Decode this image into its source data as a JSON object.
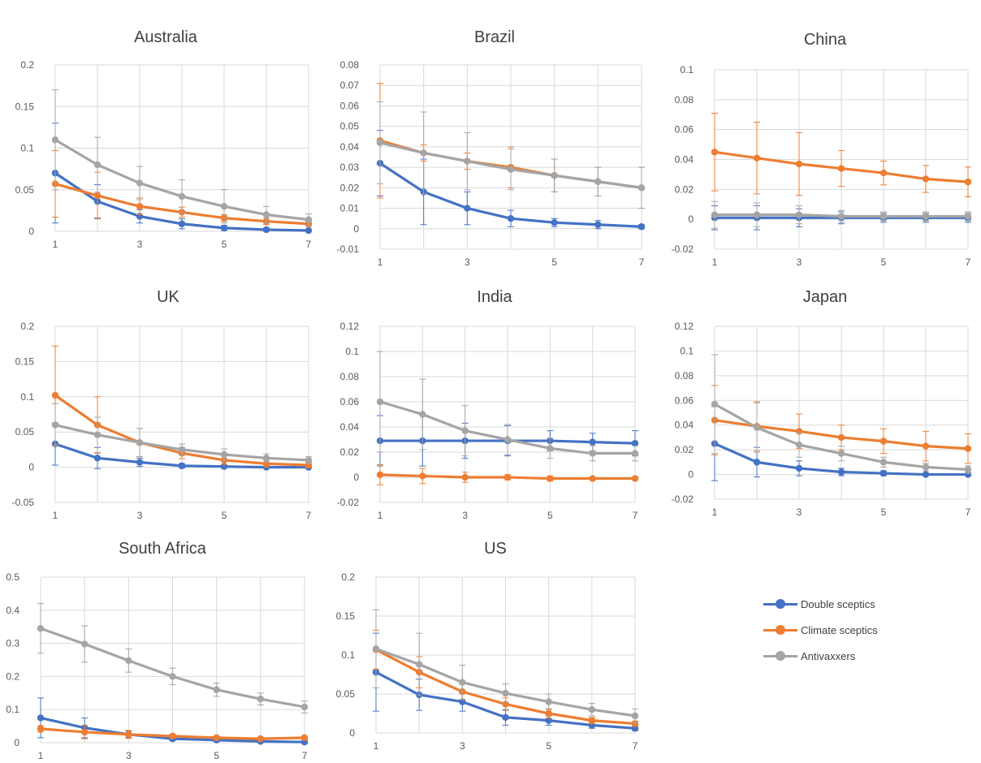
{
  "colors": {
    "double": "#4472C4",
    "climate": "#ED7D31",
    "anti": "#A5A5A5",
    "grid": "#D9D9D9",
    "axis_text": "#595959",
    "title": "#404040"
  },
  "legend": [
    {
      "label": "Double sceptics",
      "color": "#4472C4"
    },
    {
      "label": "Climate sceptics",
      "color": "#ED7D31"
    },
    {
      "label": "Antivaxxers",
      "color": "#A5A5A5"
    }
  ],
  "chart_data": [
    {
      "type": "line",
      "title": "Australia",
      "x": [
        1,
        2,
        3,
        4,
        5,
        6,
        7
      ],
      "x_ticks": [
        "1",
        "3",
        "5",
        "7"
      ],
      "xlim": [
        1,
        7
      ],
      "ylim": [
        0,
        0.2
      ],
      "y_ticks": [
        "0.2",
        "0.15",
        "0.1",
        "0.05",
        "0"
      ],
      "grid": true,
      "series": [
        {
          "name": "Double sceptics",
          "values": [
            0.07,
            0.036,
            0.018,
            0.009,
            0.004,
            0.002,
            0.001
          ],
          "err": [
            0.06,
            0.02,
            0.008,
            0.006,
            0.003,
            0.002,
            0.001
          ]
        },
        {
          "name": "Climate sceptics",
          "values": [
            0.057,
            0.043,
            0.03,
            0.023,
            0.016,
            0.012,
            0.009
          ],
          "err": [
            0.04,
            0.028,
            0.01,
            0.006,
            0.004,
            0.004,
            0.003
          ]
        },
        {
          "name": "Antivaxxers",
          "values": [
            0.11,
            0.08,
            0.058,
            0.042,
            0.03,
            0.02,
            0.014
          ],
          "err": [
            0.06,
            0.033,
            0.02,
            0.02,
            0.02,
            0.01,
            0.007
          ]
        }
      ]
    },
    {
      "type": "line",
      "title": "Brazil",
      "x": [
        1,
        2,
        3,
        4,
        5,
        6,
        7
      ],
      "x_ticks": [
        "1",
        "3",
        "5",
        "7"
      ],
      "xlim": [
        1,
        7
      ],
      "ylim": [
        -0.01,
        0.08
      ],
      "y_ticks": [
        "0.08",
        "0.07",
        "0.06",
        "0.05",
        "0.04",
        "0.03",
        "0.02",
        "0.01",
        "0",
        "-0.01"
      ],
      "grid": true,
      "series": [
        {
          "name": "Double sceptics",
          "values": [
            0.032,
            0.018,
            0.01,
            0.005,
            0.003,
            0.002,
            0.001
          ],
          "err": [
            0.016,
            0.016,
            0.008,
            0.004,
            0.002,
            0.002,
            0.001
          ]
        },
        {
          "name": "Climate sceptics",
          "values": [
            0.043,
            0.037,
            0.033,
            0.03,
            0.026,
            0.023,
            0.02
          ],
          "err": [
            0.028,
            0.004,
            0.004,
            0.01,
            0.008,
            0.007,
            0.01
          ]
        },
        {
          "name": "Antivaxxers",
          "values": [
            0.042,
            0.037,
            0.033,
            0.029,
            0.026,
            0.023,
            0.02
          ],
          "err": [
            0.02,
            0.02,
            0.014,
            0.01,
            0.008,
            0.007,
            0.01
          ]
        }
      ]
    },
    {
      "type": "line",
      "title": "China",
      "x": [
        1,
        2,
        3,
        4,
        5,
        6,
        7
      ],
      "x_ticks": [
        "1",
        "3",
        "5",
        "7"
      ],
      "xlim": [
        1,
        7
      ],
      "ylim": [
        -0.02,
        0.1
      ],
      "y_ticks": [
        "0.1",
        "0.08",
        "0.06",
        "0.04",
        "0.02",
        "0",
        "-0.02"
      ],
      "grid": true,
      "series": [
        {
          "name": "Double sceptics",
          "values": [
            0.001,
            0.001,
            0.001,
            0.001,
            0.001,
            0.001,
            0.001
          ],
          "err": [
            0.008,
            0.008,
            0.006,
            0.004,
            0.003,
            0.003,
            0.003
          ]
        },
        {
          "name": "Climate sceptics",
          "values": [
            0.045,
            0.041,
            0.037,
            0.034,
            0.031,
            0.027,
            0.025
          ],
          "err": [
            0.026,
            0.024,
            0.021,
            0.012,
            0.008,
            0.009,
            0.01
          ]
        },
        {
          "name": "Antivaxxers",
          "values": [
            0.003,
            0.003,
            0.003,
            0.002,
            0.002,
            0.002,
            0.002
          ],
          "err": [
            0.009,
            0.008,
            0.006,
            0.004,
            0.003,
            0.003,
            0.003
          ]
        }
      ]
    },
    {
      "type": "line",
      "title": "UK",
      "x": [
        1,
        2,
        3,
        4,
        5,
        6,
        7
      ],
      "x_ticks": [
        "1",
        "3",
        "5",
        "7"
      ],
      "xlim": [
        1,
        7
      ],
      "ylim": [
        -0.05,
        0.2
      ],
      "y_ticks": [
        "0.2",
        "0.15",
        "0.1",
        "0.05",
        "0",
        "-0.05"
      ],
      "grid": true,
      "series": [
        {
          "name": "Double sceptics",
          "values": [
            0.033,
            0.013,
            0.007,
            0.002,
            0.001,
            0.0,
            0.0
          ],
          "err": [
            0.03,
            0.015,
            0.006,
            0.003,
            0.002,
            0.001,
            0.001
          ]
        },
        {
          "name": "Climate sceptics",
          "values": [
            0.102,
            0.06,
            0.035,
            0.02,
            0.01,
            0.005,
            0.003
          ],
          "err": [
            0.07,
            0.04,
            0.02,
            0.008,
            0.006,
            0.005,
            0.004
          ]
        },
        {
          "name": "Antivaxxers",
          "values": [
            0.06,
            0.046,
            0.035,
            0.025,
            0.018,
            0.013,
            0.01
          ],
          "err": [
            0.03,
            0.025,
            0.02,
            0.008,
            0.008,
            0.006,
            0.005
          ]
        }
      ]
    },
    {
      "type": "line",
      "title": "India",
      "x": [
        1,
        2,
        3,
        4,
        5,
        6,
        7
      ],
      "x_ticks": [
        "1",
        "3",
        "5",
        "7"
      ],
      "xlim": [
        1,
        7
      ],
      "ylim": [
        -0.02,
        0.12
      ],
      "y_ticks": [
        "0.12",
        "0.1",
        "0.08",
        "0.06",
        "0.04",
        "0.02",
        "0",
        "-0.02"
      ],
      "grid": true,
      "series": [
        {
          "name": "Double sceptics",
          "values": [
            0.029,
            0.029,
            0.029,
            0.029,
            0.029,
            0.028,
            0.027
          ],
          "err": [
            0.02,
            0.02,
            0.014,
            0.012,
            0.008,
            0.007,
            0.01
          ]
        },
        {
          "name": "Climate sceptics",
          "values": [
            0.002,
            0.001,
            0.0,
            0.0,
            -0.001,
            -0.001,
            -0.001
          ],
          "err": [
            0.008,
            0.006,
            0.004,
            0.002,
            0.002,
            0.001,
            0.001
          ]
        },
        {
          "name": "Antivaxxers",
          "values": [
            0.06,
            0.05,
            0.037,
            0.03,
            0.023,
            0.019,
            0.019
          ],
          "err": [
            0.04,
            0.028,
            0.02,
            0.012,
            0.008,
            0.006,
            0.006
          ]
        }
      ]
    },
    {
      "type": "line",
      "title": "Japan",
      "x": [
        1,
        2,
        3,
        4,
        5,
        6,
        7
      ],
      "x_ticks": [
        "1",
        "3",
        "5",
        "7"
      ],
      "xlim": [
        1,
        7
      ],
      "ylim": [
        -0.02,
        0.12
      ],
      "y_ticks": [
        "0.12",
        "0.1",
        "0.08",
        "0.06",
        "0.04",
        "0.02",
        "0",
        "-0.02"
      ],
      "grid": true,
      "series": [
        {
          "name": "Double sceptics",
          "values": [
            0.025,
            0.01,
            0.005,
            0.002,
            0.001,
            0.0,
            0.0
          ],
          "err": [
            0.03,
            0.012,
            0.006,
            0.003,
            0.002,
            0.001,
            0.001
          ]
        },
        {
          "name": "Climate sceptics",
          "values": [
            0.044,
            0.039,
            0.035,
            0.03,
            0.027,
            0.023,
            0.021
          ],
          "err": [
            0.028,
            0.02,
            0.014,
            0.01,
            0.01,
            0.012,
            0.012
          ]
        },
        {
          "name": "Antivaxxers",
          "values": [
            0.057,
            0.038,
            0.024,
            0.017,
            0.01,
            0.006,
            0.004
          ],
          "err": [
            0.04,
            0.02,
            0.01,
            0.006,
            0.004,
            0.003,
            0.003
          ]
        }
      ]
    },
    {
      "type": "line",
      "title": "South Africa",
      "x": [
        1,
        2,
        3,
        4,
        5,
        6,
        7
      ],
      "x_ticks": [
        "1",
        "3",
        "5",
        "7"
      ],
      "xlim": [
        1,
        7
      ],
      "ylim": [
        0,
        0.5
      ],
      "y_ticks": [
        "0.5",
        "0.4",
        "0.3",
        "0.2",
        "0.1",
        "0"
      ],
      "grid": true,
      "series": [
        {
          "name": "Double sceptics",
          "values": [
            0.075,
            0.045,
            0.025,
            0.012,
            0.008,
            0.004,
            0.002
          ],
          "err": [
            0.06,
            0.03,
            0.01,
            0.006,
            0.004,
            0.003,
            0.003
          ]
        },
        {
          "name": "Climate sceptics",
          "values": [
            0.042,
            0.032,
            0.025,
            0.02,
            0.015,
            0.012,
            0.015
          ],
          "err": [
            0.01,
            0.02,
            0.012,
            0.006,
            0.005,
            0.004,
            0.004
          ]
        },
        {
          "name": "Antivaxxers",
          "values": [
            0.345,
            0.298,
            0.248,
            0.2,
            0.16,
            0.132,
            0.108
          ],
          "err": [
            0.075,
            0.055,
            0.035,
            0.025,
            0.02,
            0.018,
            0.018
          ]
        }
      ]
    },
    {
      "type": "line",
      "title": "US",
      "x": [
        1,
        2,
        3,
        4,
        5,
        6,
        7
      ],
      "x_ticks": [
        "1",
        "3",
        "5",
        "7"
      ],
      "xlim": [
        1,
        7
      ],
      "ylim": [
        0,
        0.2
      ],
      "y_ticks": [
        "0.2",
        "0.15",
        "0.1",
        "0.05",
        "0"
      ],
      "grid": true,
      "series": [
        {
          "name": "Double sceptics",
          "values": [
            0.078,
            0.049,
            0.04,
            0.02,
            0.016,
            0.01,
            0.006
          ],
          "err": [
            0.05,
            0.02,
            0.012,
            0.01,
            0.006,
            0.004,
            0.003
          ]
        },
        {
          "name": "Climate sceptics",
          "values": [
            0.107,
            0.078,
            0.053,
            0.037,
            0.025,
            0.016,
            0.012
          ],
          "err": [
            0.025,
            0.02,
            0.01,
            0.008,
            0.006,
            0.004,
            0.003
          ]
        },
        {
          "name": "Antivaxxers",
          "values": [
            0.108,
            0.088,
            0.065,
            0.051,
            0.04,
            0.03,
            0.022
          ],
          "err": [
            0.05,
            0.04,
            0.022,
            0.012,
            0.01,
            0.008,
            0.009
          ]
        }
      ]
    }
  ]
}
